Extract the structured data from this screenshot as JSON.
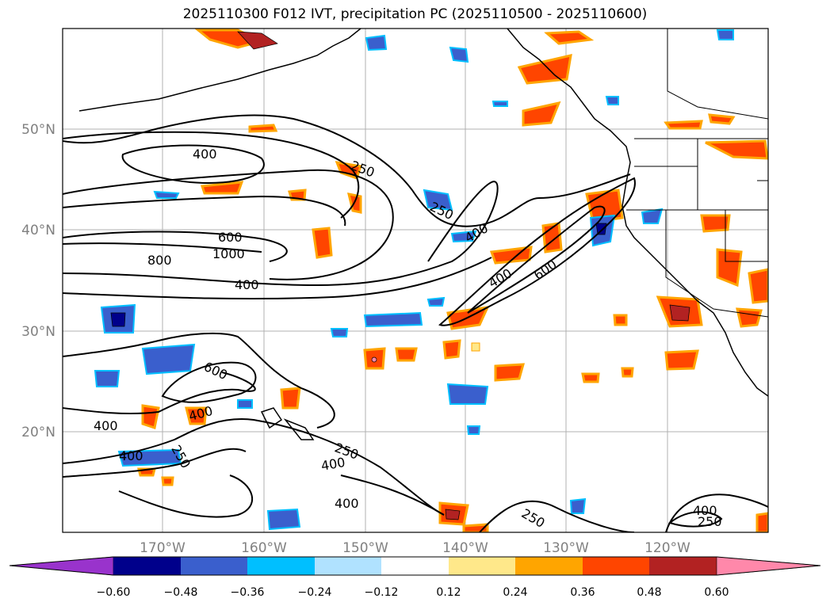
{
  "title": "2025110300 F012 IVT, precipitation PC (2025110500 - 2025110600)",
  "map": {
    "lat_labels": [
      "50°N",
      "40°N",
      "30°N",
      "20°N"
    ],
    "lon_labels": [
      "170°W",
      "160°W",
      "150°W",
      "140°W",
      "130°W",
      "120°W"
    ],
    "contour_labels": [
      "400",
      "250",
      "250",
      "600",
      "1000",
      "800",
      "400",
      "400",
      "400",
      "600",
      "600",
      "400",
      "400",
      "400",
      "250",
      "250",
      "400",
      "400",
      "250",
      "400",
      "250"
    ]
  },
  "colorbar": {
    "ticks": [
      "−0.60",
      "−0.48",
      "−0.36",
      "−0.24",
      "−0.12",
      "0.12",
      "0.24",
      "0.36",
      "0.48",
      "0.60"
    ],
    "colors": [
      "#9933cc",
      "#00008b",
      "#3a5fcd",
      "#00bfff",
      "#b0e2ff",
      "#ffffff",
      "#ffe88a",
      "#ffa500",
      "#ff4500",
      "#b22222",
      "#ff88aa",
      "#ff88aa"
    ]
  }
}
